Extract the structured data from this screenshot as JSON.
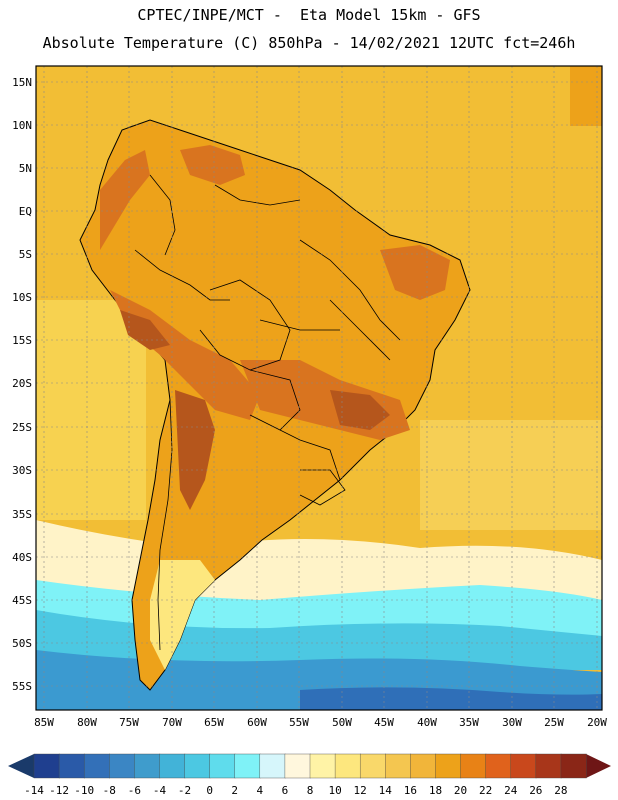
{
  "header": {
    "line1": "CPTEC/INPE/MCT -  Eta Model 15km - GFS",
    "line2": "Absolute Temperature (C) 850hPa - 14/02/2021 12UTC fct=246h"
  },
  "axes": {
    "lat_labels": [
      "15N",
      "10N",
      "5N",
      "EQ",
      "5S",
      "10S",
      "15S",
      "20S",
      "25S",
      "30S",
      "35S",
      "40S",
      "45S",
      "50S",
      "55S"
    ],
    "lon_labels": [
      "85W",
      "80W",
      "75W",
      "70W",
      "65W",
      "60W",
      "55W",
      "50W",
      "45W",
      "40W",
      "35W",
      "30W",
      "25W",
      "20W"
    ]
  },
  "colorbar": {
    "labels": [
      "-14",
      "-12",
      "-10",
      "-8",
      "-6",
      "-4",
      "-2",
      "0",
      "2",
      "4",
      "6",
      "8",
      "10",
      "12",
      "14",
      "16",
      "18",
      "20",
      "22",
      "24",
      "26",
      "28"
    ],
    "colors": [
      "#1f3f8f",
      "#2a5aa8",
      "#3370b8",
      "#3b86c4",
      "#3f9ccc",
      "#42b3d8",
      "#4cc8e2",
      "#5fdcec",
      "#7ff2f7",
      "#d6f6fb",
      "#fff7dd",
      "#fff3a6",
      "#fde77e",
      "#f9d86a",
      "#f4c650",
      "#f1b53a",
      "#eda21a",
      "#e88216",
      "#e0621c",
      "#c9481c",
      "#a8361a",
      "#8a2617"
    ],
    "end_low": "#1a3a6a",
    "end_high": "#6e1616"
  },
  "map": {
    "ocean_warm": "#f2be35",
    "ocean_mild": "#f7d250",
    "land_base": "#eda21a",
    "hot": "#d9741f",
    "very_hot": "#b5561c",
    "cool_band": "#fff3c8",
    "cold_1": "#7ff2f7",
    "cold_2": "#4cc8e2",
    "cold_3": "#3b9ad0",
    "cold_4": "#2f6fb8"
  }
}
